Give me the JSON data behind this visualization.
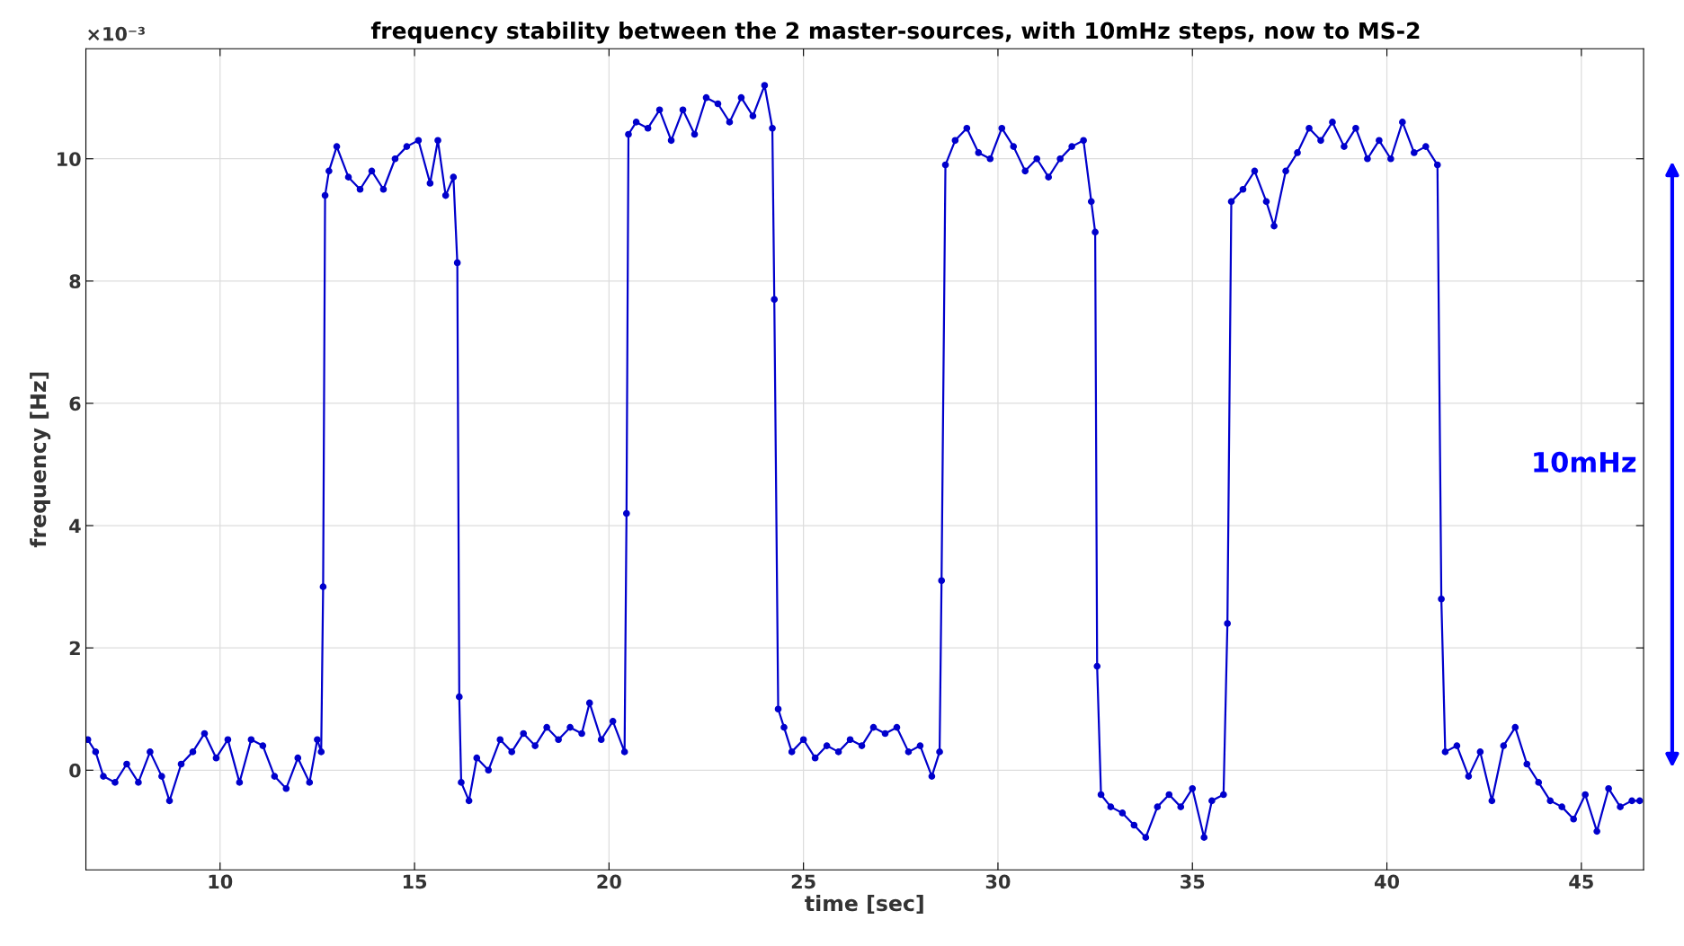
{
  "chart_data": {
    "type": "line",
    "title": "frequency stability between the 2 master-sources, with 10mHz steps, now to MS-2",
    "xlabel": "time [sec]",
    "ylabel": "frequency [Hz]",
    "annotations": [
      "×10⁻³",
      "10mHz"
    ],
    "xlim": [
      6.55,
      46.6
    ],
    "ylim": [
      -1.63,
      11.8
    ],
    "xticks": [
      10,
      15,
      20,
      25,
      30,
      35,
      40,
      45
    ],
    "yticks": [
      0,
      2,
      4,
      6,
      8,
      10
    ],
    "grid": true,
    "marker": "circle",
    "line_style": "solid",
    "series": [
      {
        "color": "#0000cc",
        "x": [
          6.6,
          6.8,
          7.0,
          7.3,
          7.6,
          7.9,
          8.2,
          8.5,
          8.7,
          9.0,
          9.3,
          9.6,
          9.9,
          10.2,
          10.5,
          10.8,
          11.1,
          11.4,
          11.7,
          12.0,
          12.3,
          12.5,
          12.6,
          12.65,
          12.7,
          12.8,
          13.0,
          13.3,
          13.6,
          13.9,
          14.2,
          14.5,
          14.8,
          15.1,
          15.4,
          15.6,
          15.8,
          16.0,
          16.1,
          16.15,
          16.2,
          16.4,
          16.6,
          16.9,
          17.2,
          17.5,
          17.8,
          18.1,
          18.4,
          18.7,
          19.0,
          19.3,
          19.5,
          19.8,
          20.1,
          20.4,
          20.45,
          20.5,
          20.7,
          21.0,
          21.3,
          21.6,
          21.9,
          22.2,
          22.5,
          22.8,
          23.1,
          23.4,
          23.7,
          24.0,
          24.2,
          24.25,
          24.35,
          24.5,
          24.7,
          25.0,
          25.3,
          25.6,
          25.9,
          26.2,
          26.5,
          26.8,
          27.1,
          27.4,
          27.7,
          28.0,
          28.3,
          28.5,
          28.55,
          28.65,
          28.9,
          29.2,
          29.5,
          29.8,
          30.1,
          30.4,
          30.7,
          31.0,
          31.3,
          31.6,
          31.9,
          32.2,
          32.4,
          32.5,
          32.55,
          32.65,
          32.9,
          33.2,
          33.5,
          33.8,
          34.1,
          34.4,
          34.7,
          35.0,
          35.3,
          35.5,
          35.8,
          35.9,
          36.0,
          36.3,
          36.6,
          36.9,
          37.1,
          37.4,
          37.7,
          38.0,
          38.3,
          38.6,
          38.9,
          39.2,
          39.5,
          39.8,
          40.1,
          40.4,
          40.7,
          41.0,
          41.3,
          41.4,
          41.5,
          41.8,
          42.1,
          42.4,
          42.7,
          43.0,
          43.3,
          43.6,
          43.9,
          44.2,
          44.5,
          44.8,
          45.1,
          45.4,
          45.7,
          46.0,
          46.3,
          46.5
        ],
        "values": [
          0.5,
          0.3,
          -0.1,
          -0.2,
          0.1,
          -0.2,
          0.3,
          -0.1,
          -0.5,
          0.1,
          0.3,
          0.6,
          0.2,
          0.5,
          -0.2,
          0.5,
          0.4,
          -0.1,
          -0.3,
          0.2,
          -0.2,
          0.5,
          0.3,
          3.0,
          9.4,
          9.8,
          10.2,
          9.7,
          9.5,
          9.8,
          9.5,
          10.0,
          10.2,
          10.3,
          9.6,
          10.3,
          9.4,
          9.7,
          8.3,
          1.2,
          -0.2,
          -0.5,
          0.2,
          0.0,
          0.5,
          0.3,
          0.6,
          0.4,
          0.7,
          0.5,
          0.7,
          0.6,
          1.1,
          0.5,
          0.8,
          0.3,
          4.2,
          10.4,
          10.6,
          10.5,
          10.8,
          10.3,
          10.8,
          10.4,
          11.0,
          10.9,
          10.6,
          11.0,
          10.7,
          11.2,
          10.5,
          7.7,
          1.0,
          0.7,
          0.3,
          0.5,
          0.2,
          0.4,
          0.3,
          0.5,
          0.4,
          0.7,
          0.6,
          0.7,
          0.3,
          0.4,
          -0.1,
          0.3,
          3.1,
          9.9,
          10.3,
          10.5,
          10.1,
          10.0,
          10.5,
          10.2,
          9.8,
          10.0,
          9.7,
          10.0,
          10.2,
          10.3,
          9.3,
          8.8,
          1.7,
          -0.4,
          -0.6,
          -0.7,
          -0.9,
          -1.1,
          -0.6,
          -0.4,
          -0.6,
          -0.3,
          -1.1,
          -0.5,
          -0.4,
          2.4,
          9.3,
          9.5,
          9.8,
          9.3,
          8.9,
          9.8,
          10.1,
          10.5,
          10.3,
          10.6,
          10.2,
          10.5,
          10.0,
          10.3,
          10.0,
          10.6,
          10.1,
          10.2,
          9.9,
          2.8,
          0.3,
          0.4,
          -0.1,
          0.3,
          -0.5,
          0.4,
          0.7,
          0.1,
          -0.2,
          -0.5,
          -0.6,
          -0.8,
          -0.4,
          -1.0,
          -0.3,
          -0.6,
          -0.5,
          -0.5
        ]
      }
    ]
  }
}
